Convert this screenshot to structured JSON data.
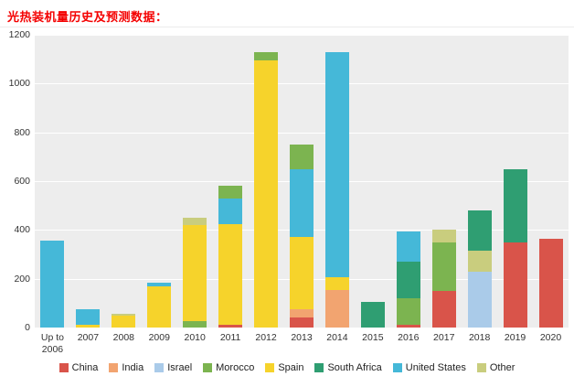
{
  "title": "光热装机量历史及预测数据：",
  "title_color": "#f40000",
  "chart_data": {
    "type": "bar",
    "stacked": true,
    "title": "光热装机量历史及预测数据",
    "xlabel": "",
    "ylabel": "",
    "ylim": [
      0,
      1200
    ],
    "yticks": [
      0,
      200,
      400,
      600,
      800,
      1000,
      1200
    ],
    "grid": true,
    "plot_bg": "#ededed",
    "grid_color": "#ffffff",
    "legend_position": "bottom",
    "series": [
      "China",
      "India",
      "Israel",
      "Morocco",
      "Spain",
      "South Africa",
      "United States",
      "Other"
    ],
    "colors": {
      "China": "#d9544a",
      "India": "#f2a470",
      "Israel": "#aacbe9",
      "Morocco": "#7cb450",
      "Spain": "#f6d32b",
      "South Africa": "#2f9e72",
      "United States": "#45b8d8",
      "Other": "#c9cd7e"
    },
    "bars": [
      {
        "category": "Up to 2006",
        "segments": [
          {
            "series": "United States",
            "value": 355
          }
        ]
      },
      {
        "category": "2007",
        "segments": [
          {
            "series": "Spain",
            "value": 12
          },
          {
            "series": "United States",
            "value": 63
          }
        ]
      },
      {
        "category": "2008",
        "segments": [
          {
            "series": "Spain",
            "value": 50
          },
          {
            "series": "Other",
            "value": 8
          }
        ]
      },
      {
        "category": "2009",
        "segments": [
          {
            "series": "Spain",
            "value": 170
          },
          {
            "series": "United States",
            "value": 12
          }
        ]
      },
      {
        "category": "2010",
        "segments": [
          {
            "series": "Morocco",
            "value": 25
          },
          {
            "series": "Spain",
            "value": 395
          },
          {
            "series": "Other",
            "value": 30
          }
        ]
      },
      {
        "category": "2011",
        "segments": [
          {
            "series": "China",
            "value": 10
          },
          {
            "series": "Spain",
            "value": 415
          },
          {
            "series": "United States",
            "value": 105
          },
          {
            "series": "Morocco",
            "value": 50
          }
        ]
      },
      {
        "category": "2012",
        "segments": [
          {
            "series": "Spain",
            "value": 1095
          },
          {
            "series": "Morocco",
            "value": 35
          }
        ]
      },
      {
        "category": "2013",
        "segments": [
          {
            "series": "China",
            "value": 40
          },
          {
            "series": "India",
            "value": 35
          },
          {
            "series": "Spain",
            "value": 295
          },
          {
            "series": "United States",
            "value": 280
          },
          {
            "series": "Morocco",
            "value": 100
          }
        ]
      },
      {
        "category": "2014",
        "segments": [
          {
            "series": "India",
            "value": 155
          },
          {
            "series": "Spain",
            "value": 50
          },
          {
            "series": "United States",
            "value": 925
          }
        ]
      },
      {
        "category": "2015",
        "segments": [
          {
            "series": "South Africa",
            "value": 105
          }
        ]
      },
      {
        "category": "2016",
        "segments": [
          {
            "series": "China",
            "value": 10
          },
          {
            "series": "Morocco",
            "value": 110
          },
          {
            "series": "South Africa",
            "value": 150
          },
          {
            "series": "United States",
            "value": 125
          }
        ]
      },
      {
        "category": "2017",
        "segments": [
          {
            "series": "China",
            "value": 150
          },
          {
            "series": "Morocco",
            "value": 200
          },
          {
            "series": "Other",
            "value": 50
          }
        ]
      },
      {
        "category": "2018",
        "segments": [
          {
            "series": "Israel",
            "value": 230
          },
          {
            "series": "Other",
            "value": 85
          },
          {
            "series": "South Africa",
            "value": 165
          }
        ]
      },
      {
        "category": "2019",
        "segments": [
          {
            "series": "China",
            "value": 350
          },
          {
            "series": "South Africa",
            "value": 300
          }
        ]
      },
      {
        "category": "2020",
        "segments": [
          {
            "series": "China",
            "value": 365
          }
        ]
      }
    ]
  }
}
